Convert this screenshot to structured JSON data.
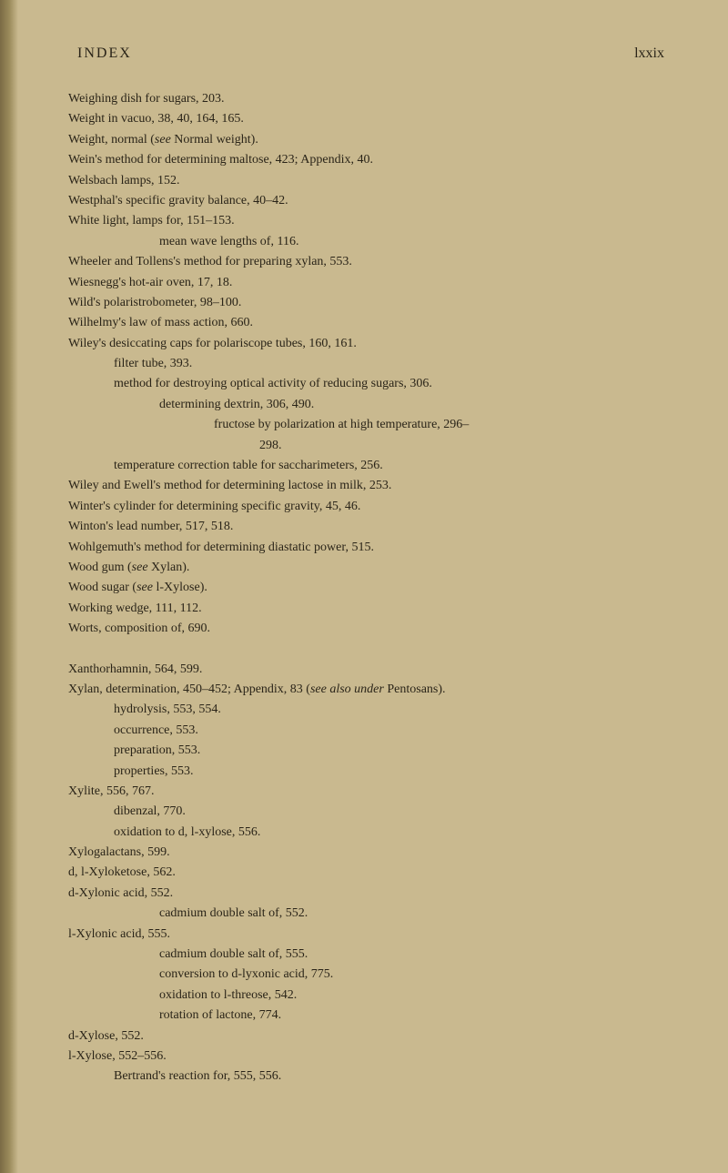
{
  "header": {
    "left": "INDEX",
    "right": "lxxix"
  },
  "entries": [
    {
      "text": "Weighing dish for sugars, 203.",
      "indent": 0
    },
    {
      "text": "Weight in vacuo, 38, 40, 164, 165.",
      "indent": 0
    },
    {
      "text": "Weight, normal (see Normal weight).",
      "indent": 0,
      "italic_word": "see"
    },
    {
      "text": "Wein's method for determining maltose, 423; Appendix, 40.",
      "indent": 0
    },
    {
      "text": "Welsbach lamps, 152.",
      "indent": 0
    },
    {
      "text": "Westphal's specific gravity balance, 40–42.",
      "indent": 0
    },
    {
      "text": "White light, lamps for, 151–153.",
      "indent": 0
    },
    {
      "text": "mean wave lengths of, 116.",
      "indent": 2
    },
    {
      "text": "Wheeler and Tollens's method for preparing xylan, 553.",
      "indent": 0
    },
    {
      "text": "Wiesnegg's hot-air oven, 17, 18.",
      "indent": 0
    },
    {
      "text": "Wild's polaristrobometer, 98–100.",
      "indent": 0
    },
    {
      "text": "Wilhelmy's law of mass action, 660.",
      "indent": 0
    },
    {
      "text": "Wiley's desiccating caps for polariscope tubes, 160, 161.",
      "indent": 0
    },
    {
      "text": "filter tube, 393.",
      "indent": 1
    },
    {
      "text": "method for destroying optical activity of reducing sugars, 306.",
      "indent": 1
    },
    {
      "text": "determining dextrin, 306, 490.",
      "indent": 2
    },
    {
      "text": "fructose by polarization at high temperature, 296–",
      "indent": 3
    },
    {
      "text": "298.",
      "indent": 4
    },
    {
      "text": "temperature correction table for saccharimeters, 256.",
      "indent": 1
    },
    {
      "text": "Wiley and Ewell's method for determining lactose in milk, 253.",
      "indent": 0
    },
    {
      "text": "Winter's cylinder for determining specific gravity, 45, 46.",
      "indent": 0
    },
    {
      "text": "Winton's lead number, 517, 518.",
      "indent": 0
    },
    {
      "text": "Wohlgemuth's method for determining diastatic power, 515.",
      "indent": 0
    },
    {
      "text": "Wood gum (see Xylan).",
      "indent": 0,
      "italic_word": "see"
    },
    {
      "text": "Wood sugar (see l-Xylose).",
      "indent": 0,
      "italic_word": "see"
    },
    {
      "text": "Working wedge, 111, 112.",
      "indent": 0
    },
    {
      "text": "Worts, composition of, 690.",
      "indent": 0
    },
    {
      "break": true
    },
    {
      "text": "Xanthorhamnin, 564, 599.",
      "indent": 0
    },
    {
      "text": "Xylan, determination, 450–452; Appendix, 83 (see also under Pentosans).",
      "indent": 0,
      "italic_phrase": "see also under"
    },
    {
      "text": "hydrolysis, 553, 554.",
      "indent": 1
    },
    {
      "text": "occurrence, 553.",
      "indent": 1
    },
    {
      "text": "preparation, 553.",
      "indent": 1
    },
    {
      "text": "properties, 553.",
      "indent": 1
    },
    {
      "text": "Xylite, 556, 767.",
      "indent": 0
    },
    {
      "text": "dibenzal, 770.",
      "indent": 1
    },
    {
      "text": "oxidation to d, l-xylose, 556.",
      "indent": 1
    },
    {
      "text": "Xylogalactans, 599.",
      "indent": 0
    },
    {
      "text": "d, l-Xyloketose, 562.",
      "indent": 0
    },
    {
      "text": "d-Xylonic acid, 552.",
      "indent": 0
    },
    {
      "text": "cadmium double salt of, 552.",
      "indent": 2
    },
    {
      "text": "l-Xylonic acid, 555.",
      "indent": 0
    },
    {
      "text": "cadmium double salt of, 555.",
      "indent": 2
    },
    {
      "text": "conversion to d-lyxonic acid, 775.",
      "indent": 2
    },
    {
      "text": "oxidation to l-threose, 542.",
      "indent": 2
    },
    {
      "text": "rotation of lactone, 774.",
      "indent": 2
    },
    {
      "text": "d-Xylose, 552.",
      "indent": 0
    },
    {
      "text": "l-Xylose, 552–556.",
      "indent": 0
    },
    {
      "text": "Bertrand's reaction for, 555, 556.",
      "indent": 1
    }
  ]
}
